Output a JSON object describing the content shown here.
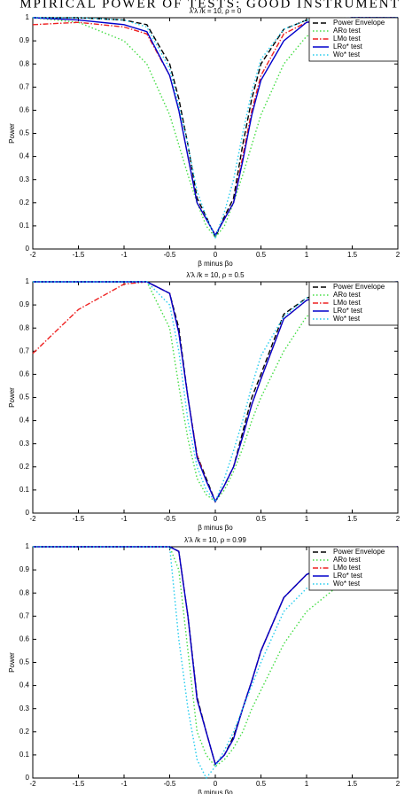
{
  "title": "MPIRICAL POWER OF TESTS: GOOD INSTRUMENT",
  "chart_data": [
    {
      "type": "line",
      "title": "λ'λ /k = 10, ρ = 0",
      "xlabel": "β minus βo",
      "ylabel": "Power",
      "x": [
        -2,
        -1.5,
        -1,
        -0.75,
        -0.5,
        -0.4,
        -0.3,
        -0.2,
        -0.1,
        0,
        0.1,
        0.2,
        0.3,
        0.4,
        0.5,
        0.75,
        1,
        1.5,
        2
      ],
      "xlim": [
        -2,
        2
      ],
      "xticks": [
        -2,
        -1.5,
        -1,
        -0.5,
        0,
        0.5,
        1,
        1.5,
        2
      ],
      "ylim": [
        0,
        1
      ],
      "yticks": [
        0,
        0.1,
        0.2,
        0.3,
        0.4,
        0.5,
        0.6,
        0.7,
        0.8,
        0.9,
        1
      ],
      "legend": "upper right",
      "series": [
        {
          "name": "Power Envelope",
          "color": "#000000",
          "style": "dashed",
          "values": [
            1,
            1,
            0.99,
            0.97,
            0.8,
            0.65,
            0.45,
            0.22,
            0.14,
            0.05,
            0.14,
            0.22,
            0.45,
            0.65,
            0.8,
            0.95,
            0.99,
            1,
            1
          ]
        },
        {
          "name": "ARo test",
          "color": "#44dd44",
          "style": "dotted",
          "values": [
            1,
            0.98,
            0.9,
            0.8,
            0.58,
            0.45,
            0.32,
            0.2,
            0.1,
            0.05,
            0.1,
            0.2,
            0.32,
            0.45,
            0.58,
            0.8,
            0.92,
            0.99,
            1
          ]
        },
        {
          "name": "LMo test",
          "color": "#ee2222",
          "style": "dashdot",
          "values": [
            0.97,
            0.98,
            0.96,
            0.93,
            0.75,
            0.6,
            0.4,
            0.2,
            0.13,
            0.06,
            0.13,
            0.2,
            0.4,
            0.6,
            0.75,
            0.93,
            0.98,
            1,
            1
          ]
        },
        {
          "name": "LRo* test",
          "color": "#0000cc",
          "style": "solid",
          "values": [
            1,
            0.99,
            0.97,
            0.94,
            0.75,
            0.6,
            0.4,
            0.2,
            0.13,
            0.06,
            0.13,
            0.2,
            0.38,
            0.58,
            0.73,
            0.9,
            0.98,
            1,
            1
          ]
        },
        {
          "name": "Wo* test",
          "color": "#22ccee",
          "style": "dotted",
          "values": [
            1,
            1,
            0.99,
            0.96,
            0.78,
            0.62,
            0.45,
            0.25,
            0.14,
            0.05,
            0.16,
            0.3,
            0.5,
            0.68,
            0.82,
            0.95,
            0.99,
            1,
            1
          ]
        }
      ]
    },
    {
      "type": "line",
      "title": "λ'λ /k = 10, ρ = 0.5",
      "xlabel": "β minus βo",
      "ylabel": "Power",
      "x": [
        -2,
        -1.5,
        -1,
        -0.75,
        -0.5,
        -0.4,
        -0.3,
        -0.2,
        -0.1,
        0,
        0.1,
        0.2,
        0.3,
        0.4,
        0.5,
        0.75,
        1,
        1.5,
        2
      ],
      "xlim": [
        -2,
        2
      ],
      "xticks": [
        -2,
        -1.5,
        -1,
        -0.5,
        0,
        0.5,
        1,
        1.5,
        2
      ],
      "ylim": [
        0,
        1
      ],
      "yticks": [
        0,
        0.1,
        0.2,
        0.3,
        0.4,
        0.5,
        0.6,
        0.7,
        0.8,
        0.9,
        1
      ],
      "legend": "upper right",
      "series": [
        {
          "name": "Power Envelope",
          "color": "#000000",
          "style": "dashed",
          "values": [
            1,
            1,
            1,
            1,
            0.95,
            0.8,
            0.5,
            0.25,
            0.15,
            0.05,
            0.12,
            0.2,
            0.35,
            0.5,
            0.6,
            0.86,
            0.93,
            0.99,
            1
          ]
        },
        {
          "name": "ARo test",
          "color": "#44dd44",
          "style": "dotted",
          "values": [
            1,
            1,
            1,
            1,
            0.8,
            0.55,
            0.32,
            0.15,
            0.08,
            0.05,
            0.1,
            0.18,
            0.28,
            0.4,
            0.5,
            0.7,
            0.85,
            0.95,
            0.99
          ]
        },
        {
          "name": "LMo test",
          "color": "#ee2222",
          "style": "dashdot",
          "values": [
            0.69,
            0.88,
            0.99,
            1,
            0.95,
            0.78,
            0.5,
            0.25,
            0.14,
            0.05,
            0.12,
            0.2,
            0.33,
            0.47,
            0.58,
            0.84,
            0.92,
            0.98,
            1
          ]
        },
        {
          "name": "LRo* test",
          "color": "#0000cc",
          "style": "solid",
          "values": [
            1,
            1,
            1,
            1,
            0.95,
            0.78,
            0.5,
            0.24,
            0.14,
            0.05,
            0.12,
            0.2,
            0.33,
            0.47,
            0.58,
            0.84,
            0.92,
            0.98,
            1
          ]
        },
        {
          "name": "Wo* test",
          "color": "#22ccee",
          "style": "dotted",
          "values": [
            1,
            1,
            1,
            1,
            0.9,
            0.7,
            0.4,
            0.2,
            0.1,
            0.05,
            0.15,
            0.27,
            0.4,
            0.55,
            0.68,
            0.85,
            0.93,
            0.99,
            1
          ]
        }
      ]
    },
    {
      "type": "line",
      "title": "λ'λ /k = 10, ρ = 0.99",
      "xlabel": "β minus βo",
      "ylabel": "Power",
      "x": [
        -2,
        -1.5,
        -1,
        -0.75,
        -0.5,
        -0.4,
        -0.3,
        -0.2,
        -0.1,
        0,
        0.1,
        0.2,
        0.3,
        0.4,
        0.5,
        0.75,
        1,
        1.5,
        2
      ],
      "xlim": [
        -2,
        2
      ],
      "xticks": [
        -2,
        -1.5,
        -1,
        -0.5,
        0,
        0.5,
        1,
        1.5,
        2
      ],
      "ylim": [
        0,
        1
      ],
      "yticks": [
        0,
        0.1,
        0.2,
        0.3,
        0.4,
        0.5,
        0.6,
        0.7,
        0.8,
        0.9,
        1
      ],
      "legend": "upper right",
      "series": [
        {
          "name": "Power Envelope",
          "color": "#000000",
          "style": "dashed",
          "values": [
            1,
            1,
            1,
            1,
            1,
            0.98,
            0.7,
            0.35,
            0.2,
            0.06,
            0.1,
            0.18,
            0.3,
            0.42,
            0.55,
            0.78,
            0.88,
            0.97,
            1
          ]
        },
        {
          "name": "ARo test",
          "color": "#44dd44",
          "style": "dotted",
          "values": [
            1,
            1,
            1,
            1,
            1,
            0.9,
            0.55,
            0.2,
            0.1,
            0.05,
            0.08,
            0.13,
            0.2,
            0.3,
            0.38,
            0.58,
            0.72,
            0.88,
            0.95
          ]
        },
        {
          "name": "LMo test",
          "color": "#ee2222",
          "style": "dashdot",
          "values": [
            1,
            1,
            1,
            1,
            1,
            0.98,
            0.7,
            0.34,
            0.2,
            0.06,
            0.1,
            0.17,
            0.3,
            0.42,
            0.55,
            0.78,
            0.88,
            0.97,
            1
          ]
        },
        {
          "name": "LRo* test",
          "color": "#0000cc",
          "style": "solid",
          "values": [
            1,
            1,
            1,
            1,
            1,
            0.98,
            0.7,
            0.34,
            0.2,
            0.06,
            0.1,
            0.17,
            0.3,
            0.42,
            0.55,
            0.78,
            0.88,
            0.97,
            1
          ]
        },
        {
          "name": "Wo* test",
          "color": "#22ccee",
          "style": "dotted",
          "values": [
            1,
            1,
            1,
            1,
            1,
            0.6,
            0.3,
            0.08,
            0,
            0.05,
            0.12,
            0.2,
            0.3,
            0.4,
            0.5,
            0.72,
            0.82,
            0.92,
            0.97
          ]
        }
      ]
    }
  ]
}
